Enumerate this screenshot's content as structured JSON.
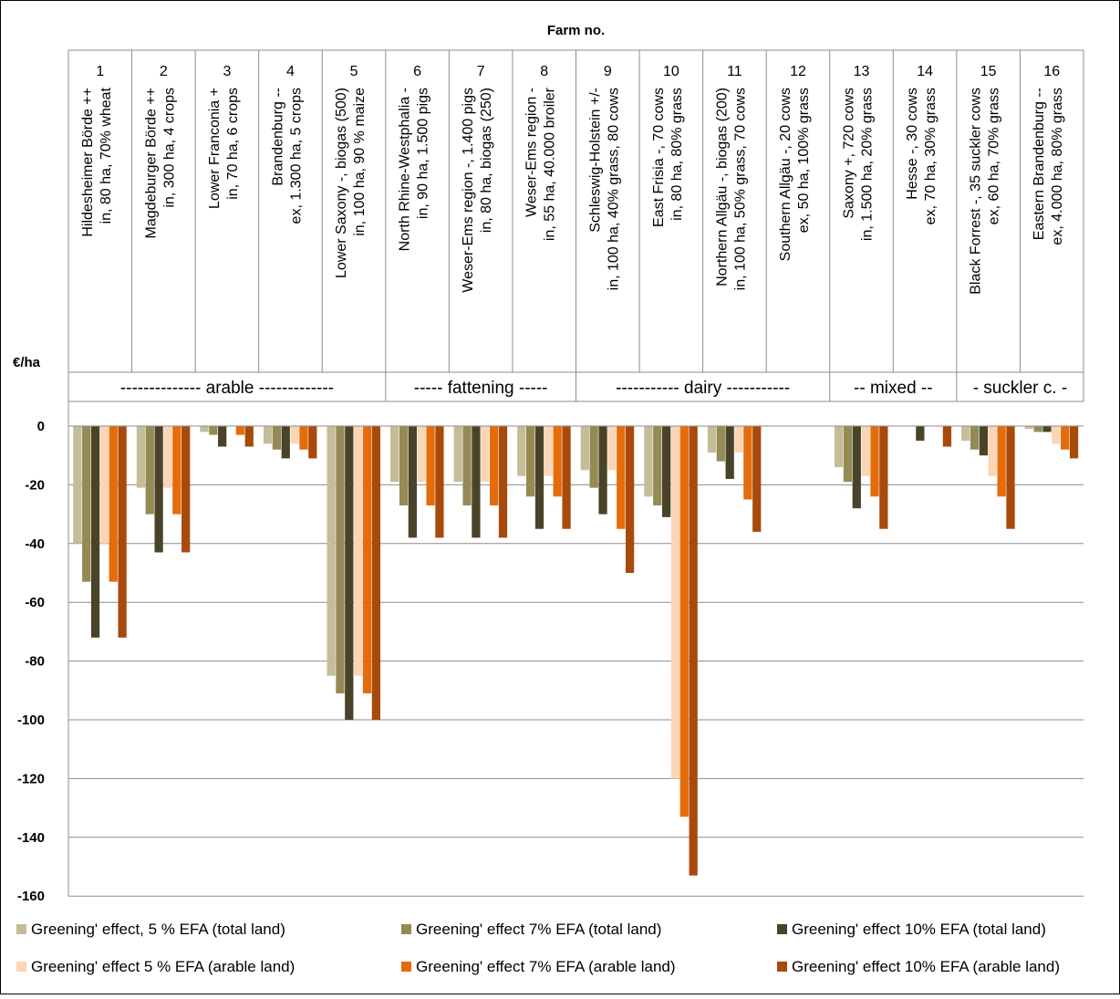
{
  "chart_data": {
    "type": "bar",
    "title": "",
    "header": "Farm no.",
    "ylabel": "€/ha",
    "ylim": [
      -160,
      0
    ],
    "yticks": [
      0,
      -20,
      -40,
      -60,
      -80,
      -100,
      -120,
      -140,
      -160
    ],
    "grid": true,
    "legend_position": "bottom",
    "categories": [
      "1",
      "2",
      "3",
      "4",
      "5",
      "6",
      "7",
      "8",
      "9",
      "10",
      "11",
      "12",
      "13",
      "14",
      "15",
      "16"
    ],
    "descriptions": [
      [
        "Hildesheimer Börde ++",
        "in, 80 ha, 70% wheat"
      ],
      [
        "Magdeburger Börde ++",
        "in, 300 ha, 4 crops"
      ],
      [
        "Lower Franconia +",
        "in, 70 ha, 6 crops"
      ],
      [
        "Brandenburg --",
        "ex, 1.300 ha, 5 crops"
      ],
      [
        "Lower Saxony -, biogas (500)",
        "in, 100 ha, 90 % maize"
      ],
      [
        "North Rhine-Westphalia -",
        "in, 90 ha, 1.500 pigs"
      ],
      [
        "Weser-Ems region -, 1.400 pigs",
        "in, 80 ha, biogas (250)"
      ],
      [
        "Weser-Ems region -",
        "in, 55 ha, 40.000 broiler"
      ],
      [
        "Schleswig-Holstein +/-",
        "in, 100 ha, 40% grass, 80 cows"
      ],
      [
        "East Frisia -, 70 cows",
        "in, 80 ha, 80% grass"
      ],
      [
        "Northern Allgäu -, biogas (200)",
        "in, 100 ha, 50% grass, 70 cows"
      ],
      [
        "Southern Allgäu -, 20 cows",
        "ex, 50 ha, 100% grass"
      ],
      [
        "Saxony +, 720 cows",
        "in, 1.500 ha, 20% grass"
      ],
      [
        "Hesse -, 30 cows",
        "ex, 70 ha, 30% grass"
      ],
      [
        "Black Forrest -, 35 suckler cows",
        "ex, 60 ha, 70% grass"
      ],
      [
        "Eastern Brandenburg --",
        "ex, 4.000 ha, 80% grass"
      ]
    ],
    "groups": [
      {
        "label": "-------------- arable -------------",
        "start": 0,
        "end": 4
      },
      {
        "label": "----- fattening -----",
        "start": 5,
        "end": 7
      },
      {
        "label": "----------- dairy -----------",
        "start": 8,
        "end": 11
      },
      {
        "label": "-- mixed --",
        "start": 12,
        "end": 13
      },
      {
        "label": "- suckler c. -",
        "start": 14,
        "end": 15
      }
    ],
    "series": [
      {
        "name": "Greening' effect, 5 % EFA (total land)",
        "color": "#c4bd97",
        "values": [
          -40,
          -21,
          -2,
          -6,
          -85,
          -19,
          -19,
          -17,
          -15,
          -24,
          -9,
          0,
          -14,
          0,
          -5,
          -1
        ]
      },
      {
        "name": "Greening' effect 7% EFA (total land)",
        "color": "#948a54",
        "values": [
          -53,
          -30,
          -3,
          -8,
          -91,
          -27,
          -27,
          -24,
          -21,
          -27,
          -12,
          0,
          -19,
          0,
          -8,
          -2
        ]
      },
      {
        "name": "Greening' effect 10% EFA (total land)",
        "color": "#494429",
        "values": [
          -72,
          -43,
          -7,
          -11,
          -100,
          -38,
          -38,
          -35,
          -30,
          -31,
          -18,
          0,
          -28,
          -5,
          -10,
          -2
        ]
      },
      {
        "name": "Greening' effect 5 % EFA (arable land)",
        "color": "#fcd5b5",
        "values": [
          -40,
          -21,
          0,
          -6,
          -85,
          -19,
          -19,
          -17,
          -15,
          -120,
          -9,
          0,
          -17,
          0,
          -17,
          -6
        ]
      },
      {
        "name": "Greening' effect 7% EFA (arable land)",
        "color": "#e46c0a",
        "values": [
          -53,
          -30,
          -3,
          -8,
          -91,
          -27,
          -27,
          -24,
          -35,
          -133,
          -25,
          0,
          -24,
          0,
          -24,
          -8
        ]
      },
      {
        "name": "Greening' effect 10% EFA (arable land)",
        "color": "#a84a0c",
        "values": [
          -72,
          -43,
          -7,
          -11,
          -100,
          -38,
          -38,
          -35,
          -50,
          -153,
          -36,
          0,
          -35,
          -7,
          -35,
          -11
        ]
      }
    ]
  }
}
